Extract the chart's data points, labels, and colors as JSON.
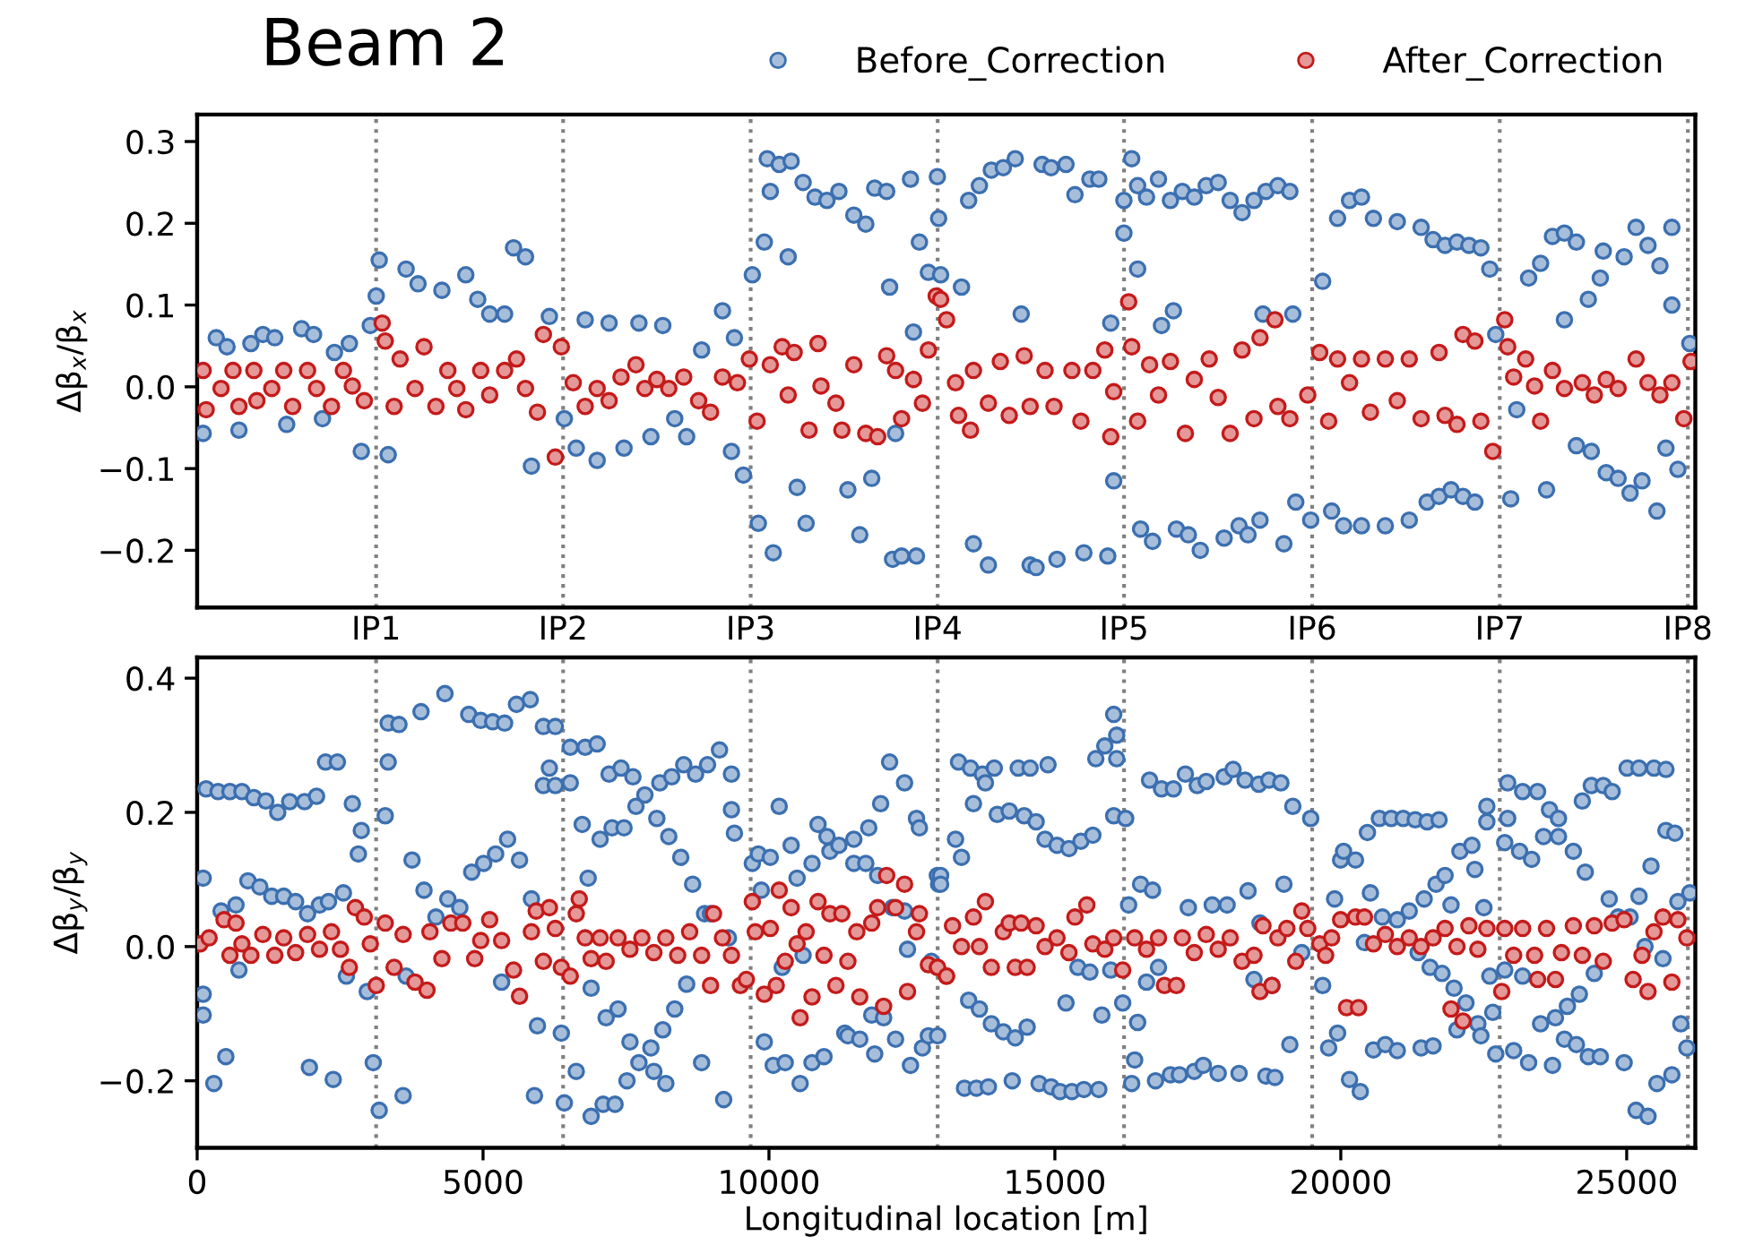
{
  "chart_data": [
    {
      "type": "scatter",
      "title": "Beam 2",
      "ylabel": "Δβ$_{x}$/β$_{x}$",
      "xlim": [
        0,
        26200
      ],
      "ylim": [
        -0.27,
        0.333
      ],
      "yticks": [
        {
          "value": -0.2,
          "label": "−0.2"
        },
        {
          "value": -0.1,
          "label": "−0.1"
        },
        {
          "value": 0,
          "label": "0.0"
        },
        0.1,
        0.2,
        0.3
      ],
      "tick_labels": "y",
      "grid": false,
      "legend": "top right",
      "marker": "circle",
      "ref_lines": [
        {
          "axis": "x",
          "value": 3130,
          "label": "IP1",
          "color": "#808080",
          "line_style": "dotted"
        },
        {
          "axis": "x",
          "value": 6400,
          "label": "IP2",
          "color": "#808080",
          "line_style": "dotted"
        },
        {
          "axis": "x",
          "value": 9680,
          "label": "IP3",
          "color": "#808080",
          "line_style": "dotted"
        },
        {
          "axis": "x",
          "value": 12950,
          "label": "IP4",
          "color": "#808080",
          "line_style": "dotted"
        },
        {
          "axis": "x",
          "value": 16210,
          "label": "IP5",
          "color": "#808080",
          "line_style": "dotted"
        },
        {
          "axis": "x",
          "value": 19500,
          "label": "IP6",
          "color": "#808080",
          "line_style": "dotted"
        },
        {
          "axis": "x",
          "value": 22780,
          "label": "IP7",
          "color": "#808080",
          "line_style": "dotted"
        },
        {
          "axis": "x",
          "value": 26070,
          "label": "IP8",
          "color": "#808080",
          "line_style": "dotted"
        }
      ],
      "series": [
        {
          "name": "Before_Correction",
          "color": "#3b6fb0",
          "x": [
            105,
            334,
            522,
            731,
            940,
            1149,
            1357,
            1566,
            1827,
            2036,
            2192,
            2401,
            2662,
            2871,
            3028,
            3184,
            3132,
            3341,
            3654,
            3863,
            4280,
            4698,
            4907,
            5116,
            5377,
            5533,
            5742,
            5846,
            6160,
            6421,
            6630,
            6786,
            6995,
            7204,
            7465,
            7726,
            7935,
            8143,
            8352,
            8561,
            8822,
            9187,
            9396,
            9344,
            9553,
            9709,
            9814,
            9918,
            10023,
            10075,
            9970,
            10179,
            10388,
            10336,
            10492,
            10649,
            10597,
            10805,
            11014,
            11223,
            11380,
            11484,
            11588,
            11693,
            11797,
            11849,
            12058,
            12110,
            12214,
            12162,
            12319,
            12475,
            12527,
            12579,
            12631,
            12788,
            12945,
            12967,
            13002,
            13367,
            13492,
            13576,
            13680,
            13837,
            13889,
            14098,
            14307,
            14411,
            14567,
            14672,
            14776,
            14933,
            15037,
            15194,
            15351,
            15507,
            15612,
            15768,
            15925,
            15977,
            16029,
            16207,
            16207,
            16343,
            16447,
            16447,
            16499,
            16603,
            16708,
            16812,
            16865,
            17073,
            17021,
            17125,
            17229,
            17334,
            17438,
            17543,
            17647,
            17856,
            17960,
            18065,
            18221,
            18274,
            18378,
            18482,
            18587,
            18639,
            18691,
            18900,
            19005,
            19109,
            19161,
            19213,
            19474,
            19683,
            19840,
            19944,
            20049,
            20153,
            20362,
            20362,
            20571,
            20779,
            20988,
            21197,
            21405,
            21510,
            21614,
            21719,
            21823,
            21928,
            22032,
            22137,
            22241,
            22345,
            22450,
            22606,
            22710,
            22972,
            23077,
            23285,
            23494,
            23598,
            23702,
            23911,
            23911,
            24120,
            24120,
            24329,
            24381,
            24538,
            24590,
            24642,
            24850,
            24955,
            25059,
            25164,
            25268,
            25373,
            25529,
            25581,
            25686,
            25790,
            25790,
            25895,
            26104
          ],
          "values": [
            -0.057,
            0.06,
            0.049,
            -0.053,
            0.053,
            0.064,
            0.06,
            -0.046,
            0.071,
            0.064,
            -0.039,
            0.042,
            0.053,
            -0.079,
            0.075,
            0.155,
            0.111,
            -0.083,
            0.144,
            0.126,
            0.118,
            0.137,
            0.107,
            0.089,
            0.089,
            0.17,
            0.159,
            -0.097,
            0.086,
            -0.039,
            -0.075,
            0.082,
            -0.09,
            0.078,
            -0.075,
            0.078,
            -0.061,
            0.075,
            -0.039,
            -0.061,
            0.045,
            0.093,
            0.06,
            -0.079,
            -0.108,
            0.137,
            -0.167,
            0.177,
            0.239,
            -0.203,
            0.279,
            0.272,
            0.276,
            0.159,
            -0.123,
            -0.167,
            0.25,
            0.232,
            0.228,
            0.239,
            -0.126,
            0.21,
            -0.181,
            0.199,
            -0.112,
            0.243,
            0.239,
            0.122,
            -0.057,
            -0.211,
            -0.207,
            0.254,
            0.067,
            -0.207,
            0.177,
            0.14,
            0.257,
            0.206,
            0.137,
            0.122,
            0.228,
            -0.192,
            0.246,
            -0.218,
            0.265,
            0.268,
            0.279,
            0.089,
            -0.218,
            -0.221,
            0.272,
            0.268,
            -0.211,
            0.272,
            0.235,
            -0.203,
            0.254,
            0.254,
            -0.207,
            0.078,
            -0.115,
            0.188,
            0.228,
            0.279,
            0.246,
            0.144,
            -0.174,
            0.232,
            -0.189,
            0.254,
            0.075,
            0.093,
            0.228,
            -0.174,
            0.239,
            -0.181,
            0.232,
            -0.2,
            0.246,
            0.25,
            -0.185,
            0.228,
            -0.17,
            0.213,
            -0.181,
            0.228,
            -0.163,
            0.089,
            0.239,
            0.246,
            -0.192,
            0.239,
            0.089,
            -0.141,
            -0.163,
            0.129,
            -0.152,
            0.206,
            -0.17,
            0.228,
            0.232,
            -0.17,
            0.206,
            -0.17,
            0.202,
            -0.163,
            0.195,
            -0.141,
            0.18,
            -0.134,
            0.173,
            -0.126,
            0.177,
            -0.134,
            0.173,
            -0.141,
            0.17,
            0.144,
            0.064,
            -0.137,
            -0.028,
            0.133,
            0.151,
            -0.126,
            0.184,
            0.188,
            0.082,
            0.177,
            -0.072,
            0.107,
            -0.079,
            0.133,
            0.166,
            -0.105,
            -0.112,
            0.159,
            -0.13,
            0.195,
            -0.115,
            0.173,
            -0.152,
            0.148,
            -0.075,
            0.195,
            0.1,
            -0.101,
            0.053
          ]
        },
        {
          "name": "After_Correction",
          "color": "#c41a1a",
          "x": [
            105,
            157,
            418,
            627,
            731,
            992,
            1044,
            1305,
            1514,
            1670,
            1931,
            2088,
            2349,
            2558,
            2714,
            2923,
            3236,
            3289,
            3445,
            3549,
            3810,
            3967,
            4176,
            4384,
            4541,
            4698,
            4959,
            5116,
            5377,
            5585,
            5742,
            5951,
            6055,
            6264,
            6369,
            6577,
            6786,
            6995,
            7204,
            7413,
            7674,
            7830,
            8039,
            8248,
            8509,
            8770,
            8978,
            9187,
            9448,
            9657,
            9792,
            10023,
            10231,
            10336,
            10440,
            10701,
            10858,
            10910,
            11171,
            11275,
            11484,
            11693,
            11901,
            12058,
            12214,
            12319,
            12527,
            12684,
            12788,
            12925,
            13002,
            13106,
            13263,
            13315,
            13576,
            13524,
            13837,
            14046,
            14202,
            14463,
            14567,
            14828,
            14985,
            15298,
            15455,
            15664,
            15873,
            15977,
            16029,
            16290,
            16343,
            16447,
            16656,
            16812,
            17021,
            17282,
            17438,
            17699,
            17856,
            18065,
            18274,
            18482,
            18587,
            18848,
            18900,
            19109,
            19422,
            19631,
            19788,
            19944,
            20153,
            20362,
            20518,
            20779,
            20988,
            21197,
            21405,
            21719,
            21823,
            22032,
            22137,
            22345,
            22450,
            22658,
            22867,
            22919,
            23023,
            23233,
            23389,
            23494,
            23702,
            23911,
            24224,
            24433,
            24642,
            24850,
            25164,
            25373,
            25581,
            25790,
            25999,
            26125
          ],
          "values": [
            0.02,
            -0.028,
            -0.002,
            0.02,
            -0.024,
            0.02,
            -0.017,
            -0.002,
            0.02,
            -0.024,
            0.02,
            -0.002,
            -0.024,
            0.02,
            0.001,
            -0.017,
            0.078,
            0.056,
            -0.024,
            0.034,
            -0.002,
            0.049,
            -0.024,
            0.02,
            -0.002,
            -0.028,
            0.02,
            -0.01,
            0.02,
            0.034,
            -0.002,
            -0.031,
            0.064,
            -0.086,
            0.049,
            0.005,
            -0.024,
            -0.002,
            -0.017,
            0.012,
            0.027,
            -0.002,
            0.009,
            -0.002,
            0.012,
            -0.017,
            -0.031,
            0.012,
            0.005,
            0.034,
            -0.042,
            0.027,
            0.049,
            -0.01,
            0.042,
            -0.053,
            0.053,
            0.001,
            -0.02,
            -0.053,
            0.027,
            -0.057,
            -0.061,
            0.038,
            0.02,
            -0.039,
            0.009,
            -0.02,
            0.045,
            0.111,
            0.107,
            0.082,
            0.005,
            -0.035,
            0.02,
            -0.053,
            -0.02,
            0.031,
            -0.035,
            0.038,
            -0.024,
            0.02,
            -0.024,
            0.02,
            -0.042,
            0.02,
            0.045,
            -0.061,
            -0.006,
            0.104,
            0.049,
            -0.042,
            0.027,
            -0.01,
            0.031,
            -0.057,
            0.009,
            0.034,
            -0.013,
            -0.057,
            0.045,
            -0.039,
            0.06,
            0.082,
            -0.024,
            -0.039,
            -0.01,
            0.042,
            -0.042,
            0.034,
            0.005,
            0.034,
            -0.031,
            0.034,
            -0.017,
            0.034,
            -0.039,
            0.042,
            -0.035,
            -0.046,
            0.064,
            0.056,
            -0.042,
            -0.079,
            0.082,
            0.049,
            0.012,
            0.034,
            0.001,
            -0.042,
            0.02,
            -0.002,
            0.005,
            -0.01,
            0.009,
            -0.002,
            0.034,
            0.005,
            -0.01,
            0.005,
            -0.039,
            0.031
          ]
        }
      ]
    },
    {
      "type": "scatter",
      "ylabel": "Δβ$_{y}$/β$_{y}$",
      "xlabel": "Longitudinal location [m]",
      "xlim": [
        0,
        26200
      ],
      "ylim": [
        -0.3,
        0.431
      ],
      "xticks": [
        0,
        5000,
        10000,
        15000,
        20000,
        25000
      ],
      "yticks": [
        {
          "value": -0.2,
          "label": "−0.2"
        },
        {
          "value": 0,
          "label": "0.0"
        },
        0.2,
        0.4
      ],
      "grid": false,
      "marker": "circle",
      "ref_lines": [
        {
          "axis": "x",
          "value": 3130,
          "color": "#808080",
          "line_style": "dotted"
        },
        {
          "axis": "x",
          "value": 6400,
          "color": "#808080",
          "line_style": "dotted"
        },
        {
          "axis": "x",
          "value": 9680,
          "color": "#808080",
          "line_style": "dotted"
        },
        {
          "axis": "x",
          "value": 12950,
          "color": "#808080",
          "line_style": "dotted"
        },
        {
          "axis": "x",
          "value": 16210,
          "color": "#808080",
          "line_style": "dotted"
        },
        {
          "axis": "x",
          "value": 19500,
          "color": "#808080",
          "line_style": "dotted"
        },
        {
          "axis": "x",
          "value": 22780,
          "color": "#808080",
          "line_style": "dotted"
        },
        {
          "axis": "x",
          "value": 26070,
          "color": "#808080",
          "line_style": "dotted"
        }
      ],
      "series": [
        {
          "color": "#3b6fb0",
          "x": [
            157,
            366,
            574,
            783,
            992,
            1201,
            1409,
            1618,
            1879,
            2088,
            2245,
            2453,
            2714,
            2871,
            2819,
            105,
            418,
            679,
            731,
            888,
            1096,
            1305,
            1514,
            1722,
            1931,
            2140,
            2297,
            2558,
            105,
            105,
            292,
            501,
            1963,
            2380,
            2610,
            2975,
            3080,
            3184,
            3289,
            3341,
            3341,
            3529,
            3602,
            3654,
            3758,
            3915,
            3967,
            4176,
            4333,
            4384,
            4593,
            4750,
            4802,
            4959,
            5011,
            5168,
            5220,
            5324,
            5377,
            5429,
            5585,
            5638,
            5825,
            5846,
            5899,
            5951,
            6055,
            6055,
            6160,
            6264,
            6264,
            6369,
            6421,
            6525,
            6525,
            6630,
            6734,
            6786,
            6838,
            6890,
            6890,
            6995,
            7047,
            7100,
            7152,
            7204,
            7256,
            7308,
            7361,
            7413,
            7465,
            7517,
            7569,
            7621,
            7674,
            7726,
            7830,
            7935,
            7987,
            8039,
            8091,
            8143,
            8196,
            8248,
            8300,
            8352,
            8457,
            8509,
            8561,
            8665,
            8717,
            8822,
            8874,
            8926,
            8978,
            9135,
            9208,
            9291,
            9344,
            9344,
            9396,
            9709,
            9814,
            9866,
            9918,
            10023,
            10075,
            10231,
            10284,
            10179,
            10388,
            10492,
            10545,
            10597,
            10753,
            10753,
            10858,
            10962,
            11014,
            11066,
            11223,
            11327,
            11380,
            11484,
            11484,
            11588,
            11693,
            11745,
            11797,
            11849,
            11901,
            11953,
            12005,
            12110,
            12162,
            12214,
            12371,
            12371,
            12423,
            12475,
            12580,
            12631,
            12684,
            12788,
            12840,
            12945,
            12967,
            13002,
            13002,
            12949,
            13263,
            13367,
            13315,
            13492,
            13576,
            13524,
            13419,
            13680,
            13732,
            13785,
            13628,
            13837,
            13889,
            13941,
            13993,
            14098,
            14202,
            14254,
            14307,
            14359,
            14463,
            14515,
            14567,
            14672,
            14724,
            14828,
            14880,
            14933,
            15037,
            15090,
            15194,
            15246,
            15298,
            15403,
            15455,
            15507,
            15612,
            15664,
            15716,
            15768,
            15821,
            15873,
            15977,
            16029,
            16081,
            16029,
            16081,
            16186,
            16238,
            16290,
            16343,
            16395,
            16447,
            16499,
            16603,
            16656,
            16708,
            16760,
            16812,
            16865,
            17021,
            17073,
            17177,
            17282,
            17334,
            17438,
            17490,
            17595,
            17647,
            17751,
            17856,
            17960,
            18012,
            18117,
            18221,
            18326,
            18378,
            18482,
            18566,
            18587,
            18691,
            18743,
            18796,
            18848,
            18952,
            19005,
            19109,
            19161,
            19318,
            19474,
            19683,
            19788,
            19892,
            19944,
            19997,
            20049,
            20153,
            20257,
            20341,
            20414,
            20466,
            20518,
            20571,
            20675,
            20727,
            20779,
            20883,
            20988,
            20988,
            21092,
            21197,
            21301,
            21353,
            21405,
            21458,
            21510,
            21562,
            21614,
            21666,
            21719,
            21771,
            21823,
            21928,
            21980,
            22032,
            22084,
            22189,
            22293,
            22345,
            22397,
            22450,
            22502,
            22554,
            22554,
            22606,
            22658,
            22710,
            22867,
            22919,
            22867,
            22919,
            23023,
            23127,
            23180,
            23180,
            23285,
            23337,
            23442,
            23494,
            23546,
            23650,
            23702,
            23754,
            23807,
            23807,
            23911,
            23963,
            24067,
            24120,
            24172,
            24224,
            24276,
            24329,
            24381,
            24433,
            24538,
            24590,
            24694,
            24746,
            24850,
            24955,
            25007,
            25059,
            25164,
            25216,
            25216,
            25320,
            25373,
            25425,
            25477,
            25529,
            25634,
            25686,
            25686,
            25790,
            25843,
            25895,
            25947,
            26052,
            26104
          ],
          "values": [
            0.235,
            0.231,
            0.231,
            0.231,
            0.222,
            0.217,
            0.2,
            0.216,
            0.216,
            0.224,
            0.275,
            0.275,
            0.213,
            0.173,
            0.138,
            0.102,
            0.053,
            0.062,
            -0.035,
            0.098,
            0.089,
            0.075,
            0.075,
            0.067,
            0.049,
            0.062,
            0.067,
            0.08,
            -0.071,
            -0.102,
            -0.204,
            -0.164,
            -0.18,
            -0.198,
            -0.044,
            -0.067,
            -0.173,
            -0.244,
            0.195,
            0.275,
            0.333,
            0.331,
            -0.222,
            -0.044,
            0.129,
            0.35,
            0.084,
            0.044,
            0.377,
            0.071,
            0.058,
            0.346,
            0.111,
            0.337,
            0.124,
            0.335,
            0.138,
            -0.053,
            0.333,
            0.16,
            0.361,
            0.129,
            0.368,
            0.071,
            -0.222,
            -0.118,
            0.328,
            0.24,
            0.266,
            0.24,
            0.328,
            -0.129,
            -0.233,
            0.297,
            0.244,
            -0.186,
            0.182,
            0.297,
            0.102,
            -0.062,
            -0.253,
            0.302,
            0.16,
            -0.235,
            -0.106,
            0.257,
            0.177,
            -0.235,
            -0.093,
            0.266,
            0.177,
            -0.2,
            -0.142,
            0.253,
            0.209,
            -0.173,
            0.226,
            -0.151,
            -0.186,
            0.191,
            0.244,
            -0.124,
            -0.204,
            0.164,
            0.253,
            -0.093,
            0.133,
            0.271,
            -0.056,
            0.093,
            0.257,
            -0.173,
            0.049,
            0.271,
            0.049,
            0.293,
            -0.228,
            0.013,
            0.257,
            0.204,
            0.169,
            0.124,
            0.138,
            0.084,
            -0.142,
            0.133,
            -0.177,
            -0.031,
            -0.173,
            0.209,
            0.151,
            0.102,
            -0.204,
            -0.013,
            0.124,
            -0.173,
            0.182,
            -0.164,
            0.164,
            0.142,
            0.151,
            -0.129,
            -0.133,
            0.16,
            0.124,
            -0.138,
            0.124,
            0.177,
            -0.102,
            -0.16,
            0.106,
            0.213,
            -0.106,
            0.275,
            0.058,
            -0.138,
            0.244,
            0.053,
            -0.004,
            -0.177,
            0.191,
            0.177,
            -0.151,
            -0.133,
            -0.022,
            0.106,
            0.093,
            0.106,
            0.093,
            -0.133,
            0.16,
            0.133,
            0.275,
            -0.08,
            0.213,
            0.266,
            -0.211,
            -0.093,
            0.257,
            0.244,
            -0.211,
            -0.209,
            -0.115,
            0.266,
            0.197,
            -0.127,
            0.202,
            -0.2,
            -0.136,
            0.266,
            0.195,
            -0.12,
            0.266,
            0.186,
            -0.204,
            0.16,
            0.271,
            -0.209,
            0.151,
            -0.216,
            -0.084,
            0.146,
            -0.216,
            -0.031,
            0.157,
            -0.213,
            -0.038,
            0.166,
            0.28,
            -0.213,
            -0.102,
            0.299,
            -0.035,
            0.346,
            0.315,
            0.195,
            0.28,
            -0.084,
            0.191,
            0.062,
            -0.204,
            -0.169,
            -0.113,
            0.093,
            -0.053,
            0.248,
            0.084,
            -0.2,
            -0.031,
            0.235,
            -0.191,
            0.235,
            -0.191,
            0.257,
            0.058,
            -0.186,
            0.24,
            -0.177,
            0.246,
            0.062,
            -0.189,
            0.253,
            0.062,
            0.264,
            -0.189,
            0.248,
            0.083,
            -0.049,
            0.242,
            0.035,
            -0.193,
            0.248,
            -0.058,
            -0.195,
            0.244,
            0.093,
            -0.146,
            0.209,
            -0.009,
            0.191,
            -0.058,
            -0.151,
            0.071,
            -0.129,
            0.129,
            0.142,
            -0.198,
            0.129,
            -0.216,
            0.006,
            0.17,
            0.08,
            -0.154,
            0.191,
            0.044,
            -0.146,
            0.191,
            0.04,
            -0.155,
            0.191,
            0.053,
            0.189,
            -0.009,
            -0.151,
            0.071,
            0.186,
            -0.031,
            -0.148,
            0.093,
            0.189,
            -0.04,
            0.106,
            0.062,
            -0.062,
            -0.124,
            0.142,
            -0.084,
            0.151,
            0.115,
            -0.115,
            -0.133,
            0.058,
            0.209,
            0.186,
            -0.044,
            -0.098,
            -0.16,
            -0.035,
            0.244,
            0.155,
            0.191,
            -0.155,
            0.142,
            0.231,
            -0.044,
            -0.173,
            0.13,
            0.231,
            -0.115,
            0.164,
            0.204,
            -0.177,
            -0.106,
            0.164,
            0.191,
            -0.138,
            -0.089,
            0.142,
            -0.146,
            -0.071,
            0.217,
            0.111,
            -0.164,
            0.24,
            -0.04,
            -0.164,
            0.24,
            0.071,
            0.231,
            0.044,
            -0.173,
            0.266,
            0.044,
            -0.244,
            0.075,
            0.266,
            0.0,
            -0.253,
            0.12,
            0.266,
            -0.204,
            -0.018,
            0.173,
            0.264,
            -0.191,
            0.169,
            0.067,
            -0.115,
            -0.151,
            0.08
          ]
        },
        {
          "color": "#c41a1a",
          "x": [
            52,
            209,
            470,
            574,
            679,
            783,
            940,
            1149,
            1357,
            1514,
            1722,
            1931,
            2140,
            2349,
            2506,
            2662,
            2767,
            2923,
            3028,
            3132,
            3289,
            3445,
            3602,
            3810,
            4019,
            4071,
            4280,
            4437,
            4645,
            4854,
            4959,
            5116,
            5324,
            5533,
            5638,
            5846,
            5929,
            6055,
            6160,
            6264,
            6369,
            6525,
            6630,
            6682,
            6786,
            6890,
            7047,
            7152,
            7361,
            7569,
            7778,
            7987,
            8196,
            8404,
            8613,
            8822,
            8978,
            9030,
            9187,
            9344,
            9500,
            9604,
            9709,
            9761,
            9918,
            10023,
            10127,
            10179,
            10284,
            10388,
            10492,
            10545,
            10649,
            10753,
            10858,
            10962,
            11066,
            11171,
            11275,
            11380,
            11536,
            11588,
            11797,
            11901,
            12005,
            12058,
            12214,
            12371,
            12423,
            12580,
            12631,
            12788,
            12945,
            13102,
            12949,
            13106,
            13210,
            13367,
            13576,
            13785,
            13680,
            13889,
            14098,
            14202,
            14307,
            14411,
            14515,
            14672,
            14828,
            15037,
            15246,
            15351,
            15559,
            15664,
            15873,
            16029,
            16186,
            16395,
            16603,
            16812,
            16917,
            17125,
            17229,
            17438,
            17647,
            17856,
            18065,
            18274,
            18482,
            18587,
            18639,
            18796,
            18900,
            19057,
            19213,
            19318,
            19422,
            19631,
            19735,
            19840,
            19997,
            20101,
            20257,
            20310,
            20414,
            20571,
            20779,
            20988,
            21197,
            21405,
            21614,
            21823,
            21928,
            22032,
            22137,
            22241,
            22397,
            22554,
            22815,
            22867,
            23023,
            23180,
            23389,
            23442,
            23598,
            23754,
            23859,
            24067,
            24224,
            24433,
            24590,
            24746,
            24955,
            25112,
            25268,
            25373,
            25477,
            25634,
            25790,
            25895,
            26052
          ],
          "values": [
            0.004,
            0.013,
            0.04,
            -0.013,
            0.035,
            0.004,
            -0.013,
            0.018,
            -0.013,
            0.013,
            -0.009,
            0.018,
            -0.004,
            0.022,
            -0.004,
            -0.031,
            0.058,
            0.044,
            0.004,
            -0.058,
            0.035,
            -0.031,
            0.018,
            -0.053,
            -0.065,
            0.022,
            -0.018,
            0.035,
            0.035,
            -0.018,
            0.009,
            0.04,
            0.009,
            -0.035,
            -0.074,
            0.022,
            0.053,
            -0.022,
            0.058,
            0.027,
            -0.031,
            -0.044,
            0.049,
            0.071,
            0.013,
            -0.018,
            0.013,
            -0.022,
            0.013,
            -0.004,
            0.013,
            -0.009,
            0.013,
            -0.013,
            0.022,
            -0.013,
            -0.058,
            0.049,
            0.013,
            -0.013,
            -0.058,
            -0.049,
            0.067,
            0.022,
            -0.071,
            0.027,
            -0.058,
            0.084,
            -0.022,
            0.058,
            0.004,
            -0.106,
            0.022,
            -0.075,
            0.067,
            -0.013,
            0.049,
            -0.058,
            0.049,
            -0.022,
            0.022,
            -0.075,
            0.035,
            0.058,
            -0.089,
            0.106,
            0.058,
            0.093,
            -0.067,
            0.022,
            0.049,
            -0.027,
            -0.031,
            -0.044,
            -0.031,
            -0.044,
            0.031,
            0.0,
            0.044,
            0.067,
            0.0,
            -0.031,
            0.022,
            0.035,
            -0.031,
            0.035,
            -0.031,
            0.031,
            0.0,
            0.013,
            -0.009,
            0.044,
            0.062,
            0.004,
            -0.004,
            0.013,
            -0.035,
            0.013,
            -0.004,
            0.013,
            -0.058,
            -0.058,
            0.013,
            -0.009,
            0.018,
            -0.004,
            0.013,
            -0.022,
            -0.013,
            -0.067,
            0.031,
            -0.058,
            0.013,
            0.027,
            -0.022,
            0.053,
            0.027,
            0.004,
            -0.013,
            0.013,
            0.04,
            -0.091,
            0.044,
            -0.091,
            0.044,
            0.004,
            0.018,
            0.0,
            0.013,
            0.0,
            0.013,
            0.027,
            -0.093,
            0.0,
            -0.111,
            0.031,
            -0.004,
            0.027,
            -0.067,
            0.027,
            -0.013,
            0.027,
            -0.013,
            -0.049,
            0.027,
            -0.049,
            -0.009,
            0.031,
            -0.013,
            0.031,
            -0.022,
            0.035,
            0.04,
            -0.049,
            -0.013,
            -0.067,
            0.022,
            0.044,
            -0.053,
            0.04,
            0.013
          ]
        }
      ]
    }
  ]
}
